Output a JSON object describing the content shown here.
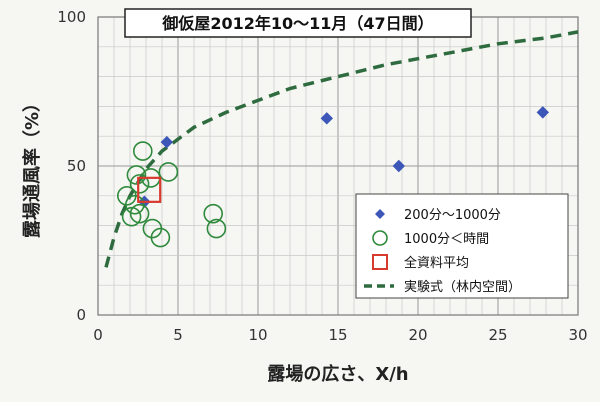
{
  "chart_data": {
    "type": "scatter",
    "title": "御仮屋2012年10～11月（47日間）",
    "xlabel": "露場の広さ、X/h",
    "ylabel": "露場通風率（%）",
    "xlim": [
      0,
      30
    ],
    "ylim": [
      0,
      100
    ],
    "x_ticks": [
      "0",
      "5",
      "10",
      "15",
      "20",
      "25",
      "30"
    ],
    "y_ticks": [
      "0",
      "50",
      "100"
    ],
    "grid": true,
    "legend_position": "bottom-right",
    "series": [
      {
        "name": "200分～1000分",
        "marker": "diamond",
        "color": "#3c57b8",
        "points": [
          {
            "x": 4.3,
            "y": 58
          },
          {
            "x": 2.9,
            "y": 38
          },
          {
            "x": 14.3,
            "y": 66
          },
          {
            "x": 18.8,
            "y": 50
          },
          {
            "x": 27.8,
            "y": 68
          }
        ]
      },
      {
        "name": "1000分＜時間",
        "marker": "circle",
        "color": "#2f8a3c",
        "points": [
          {
            "x": 2.8,
            "y": 55
          },
          {
            "x": 2.4,
            "y": 47
          },
          {
            "x": 3.3,
            "y": 46
          },
          {
            "x": 4.4,
            "y": 48
          },
          {
            "x": 2.6,
            "y": 44
          },
          {
            "x": 1.8,
            "y": 40
          },
          {
            "x": 2.3,
            "y": 37
          },
          {
            "x": 2.6,
            "y": 34
          },
          {
            "x": 2.1,
            "y": 33
          },
          {
            "x": 3.4,
            "y": 29
          },
          {
            "x": 3.9,
            "y": 26
          },
          {
            "x": 7.2,
            "y": 34
          },
          {
            "x": 7.4,
            "y": 29
          }
        ]
      },
      {
        "name": "全資料平均",
        "marker": "square",
        "color": "#d93a2e",
        "points": [
          {
            "x": 3.2,
            "y": 42
          }
        ]
      },
      {
        "name": "実験式（林内空間）",
        "marker": "dashed-line",
        "color": "#2e6b3e",
        "points": [
          {
            "x": 0.5,
            "y": 16
          },
          {
            "x": 1,
            "y": 26
          },
          {
            "x": 1.5,
            "y": 34
          },
          {
            "x": 2,
            "y": 40
          },
          {
            "x": 3,
            "y": 49
          },
          {
            "x": 4,
            "y": 55
          },
          {
            "x": 5,
            "y": 59
          },
          {
            "x": 6,
            "y": 63
          },
          {
            "x": 8,
            "y": 68
          },
          {
            "x": 10,
            "y": 72
          },
          {
            "x": 12,
            "y": 76
          },
          {
            "x": 15,
            "y": 80
          },
          {
            "x": 18,
            "y": 84
          },
          {
            "x": 20,
            "y": 86
          },
          {
            "x": 22,
            "y": 88
          },
          {
            "x": 25,
            "y": 91
          },
          {
            "x": 28,
            "y": 93
          },
          {
            "x": 30,
            "y": 95
          }
        ]
      }
    ]
  }
}
